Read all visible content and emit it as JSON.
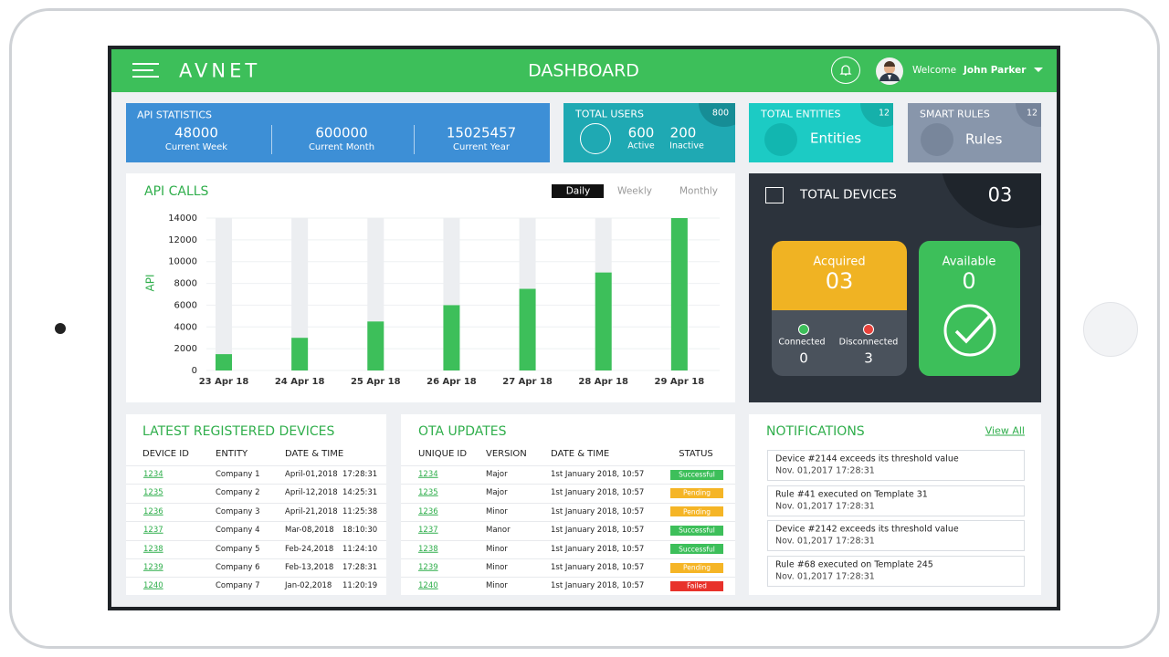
{
  "header": {
    "logo": "AVNET",
    "title": "DASHBOARD",
    "welcome": "Welcome",
    "user": "John Parker"
  },
  "api_statistics": {
    "title": "API STATISTICS",
    "stats": [
      {
        "value": "48000",
        "label": "Current Week"
      },
      {
        "value": "600000",
        "label": "Current Month"
      },
      {
        "value": "15025457",
        "label": "Current Year"
      }
    ]
  },
  "total_users": {
    "title": "TOTAL USERS",
    "badge": "800",
    "active": {
      "value": "600",
      "label": "Active"
    },
    "inactive": {
      "value": "200",
      "label": "Inactive"
    }
  },
  "total_entities": {
    "title": "TOTAL ENTITIES",
    "badge": "12",
    "label": "Entities"
  },
  "smart_rules": {
    "title": "SMART RULES",
    "badge": "12",
    "label": "Rules"
  },
  "api_calls": {
    "type": "bar",
    "title": "API CALLS",
    "y_label": "API",
    "tabs": [
      "Daily",
      "Weekly",
      "Monthly"
    ],
    "categories": [
      "23 Apr 18",
      "24 Apr 18",
      "25 Apr 18",
      "26 Apr 18",
      "27 Apr 18",
      "28 Apr 18",
      "29 Apr 18"
    ],
    "values": [
      1500,
      3000,
      4500,
      6000,
      7500,
      9000,
      14000
    ],
    "ylim": [
      0,
      14000
    ],
    "yticks": [
      0,
      2000,
      4000,
      6000,
      8000,
      10000,
      12000,
      14000
    ],
    "grid": true,
    "color": "#3dbf5a",
    "track_color": "#eceef1"
  },
  "total_devices": {
    "title": "TOTAL DEVICES",
    "count": "03",
    "acquired": {
      "label": "Acquired",
      "value": "03"
    },
    "available": {
      "label": "Available",
      "value": "0"
    },
    "connected": {
      "label": "Connected",
      "value": "0"
    },
    "disconnected": {
      "label": "Disconnected",
      "value": "3"
    }
  },
  "registered_devices": {
    "title": "LATEST REGISTERED DEVICES",
    "columns": [
      "DEVICE ID",
      "ENTITY",
      "DATE & TIME"
    ],
    "rows": [
      {
        "id": "1234",
        "entity": "Company 1",
        "date": "April-01,2018",
        "time": "17:28:31"
      },
      {
        "id": "1235",
        "entity": "Company 2",
        "date": "April-12,2018",
        "time": "14:25:31"
      },
      {
        "id": "1236",
        "entity": "Company 3",
        "date": "April-21,2018",
        "time": "11:25:38"
      },
      {
        "id": "1237",
        "entity": "Company 4",
        "date": "Mar-08,2018",
        "time": "18:10:30"
      },
      {
        "id": "1238",
        "entity": "Company 5",
        "date": "Feb-24,2018",
        "time": "11:24:10"
      },
      {
        "id": "1239",
        "entity": "Company 6",
        "date": "Feb-13,2018",
        "time": "17:28:31"
      },
      {
        "id": "1240",
        "entity": "Company 7",
        "date": "Jan-02,2018",
        "time": "11:20:19"
      }
    ]
  },
  "ota_updates": {
    "title": "OTA UPDATES",
    "columns": [
      "UNIQUE ID",
      "VERSION",
      "DATE & TIME",
      "STATUS"
    ],
    "rows": [
      {
        "id": "1234",
        "version": "Major",
        "date": "1st January 2018, 10:57",
        "status": "Successful",
        "status_color": "#3dbf5a"
      },
      {
        "id": "1235",
        "version": "Major",
        "date": "1st January 2018, 10:57",
        "status": "Pending",
        "status_color": "#f5b526"
      },
      {
        "id": "1236",
        "version": "Minor",
        "date": "1st January 2018, 10:57",
        "status": "Pending",
        "status_color": "#f5b526"
      },
      {
        "id": "1237",
        "version": "Manor",
        "date": "1st January 2018, 10:57",
        "status": "Successful",
        "status_color": "#3dbf5a"
      },
      {
        "id": "1238",
        "version": "Minor",
        "date": "1st January 2018, 10:57",
        "status": "Successful",
        "status_color": "#3dbf5a"
      },
      {
        "id": "1239",
        "version": "Minor",
        "date": "1st January 2018, 10:57",
        "status": "Pending",
        "status_color": "#f5b526"
      },
      {
        "id": "1240",
        "version": "Minor",
        "date": "1st January 2018, 10:57",
        "status": "Failed",
        "status_color": "#e8322b"
      }
    ]
  },
  "notifications": {
    "title": "NOTIFICATIONS",
    "view_all": "View All",
    "items": [
      {
        "text": "Device #2144 exceeds its threshold value",
        "time": "Nov. 01,2017 17:28:31"
      },
      {
        "text": "Rule #41 executed on Template 31",
        "time": "Nov. 01,2017 17:28:31"
      },
      {
        "text": "Device #2142 exceeds its threshold value",
        "time": "Nov. 01,2017 17:28:31"
      },
      {
        "text": "Rule #68 executed on Template 245",
        "time": "Nov. 01,2017 17:28:31"
      }
    ]
  }
}
